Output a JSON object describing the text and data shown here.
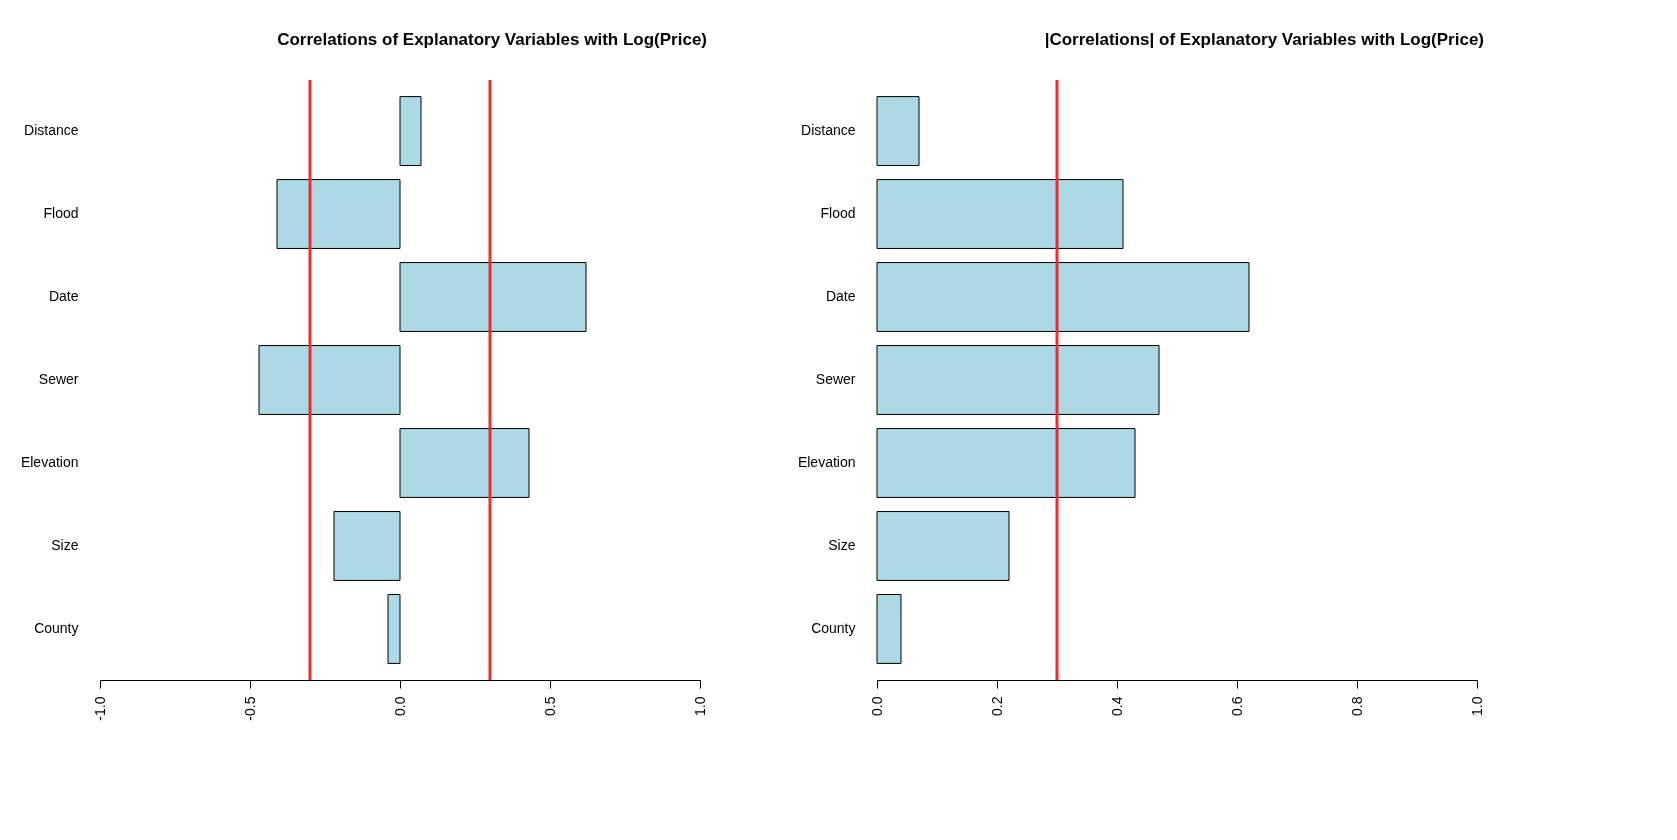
{
  "chart_data": [
    {
      "type": "bar",
      "orientation": "horizontal",
      "title": "Correlations of Explanatory Variables with Log(Price)",
      "categories": [
        "Distance",
        "Flood",
        "Date",
        "Sewer",
        "Elevation",
        "Size",
        "County"
      ],
      "values": [
        0.07,
        -0.41,
        0.62,
        -0.47,
        0.43,
        -0.22,
        -0.04
      ],
      "color": "#add8e6",
      "xlim": [
        -1,
        1
      ],
      "xticks": [
        {
          "value": -1,
          "label": "-1.0"
        },
        {
          "value": -0.5,
          "label": "-0.5"
        },
        {
          "value": 0,
          "label": "0.0"
        },
        {
          "value": 0.5,
          "label": "0.5"
        },
        {
          "value": 1,
          "label": "1.0"
        }
      ],
      "grid": false,
      "ref_lines": [
        {
          "axis": "x",
          "value": -0.3,
          "color": "#ee2c2c"
        },
        {
          "axis": "x",
          "value": 0.3,
          "color": "#ee2c2c"
        }
      ]
    },
    {
      "type": "bar",
      "orientation": "horizontal",
      "title": "|Correlations| of Explanatory Variables with Log(Price)",
      "categories": [
        "Distance",
        "Flood",
        "Date",
        "Sewer",
        "Elevation",
        "Size",
        "County"
      ],
      "values": [
        0.07,
        0.41,
        0.62,
        0.47,
        0.43,
        0.22,
        0.04
      ],
      "color": "#add8e6",
      "xlim": [
        0,
        1
      ],
      "xticks": [
        {
          "value": 0,
          "label": "0.0"
        },
        {
          "value": 0.2,
          "label": "0.2"
        },
        {
          "value": 0.4,
          "label": "0.4"
        },
        {
          "value": 0.6,
          "label": "0.6"
        },
        {
          "value": 0.8,
          "label": "0.8"
        },
        {
          "value": 1,
          "label": "1.0"
        }
      ],
      "grid": false,
      "ref_lines": [
        {
          "axis": "x",
          "value": 0.3,
          "color": "#ee2c2c"
        }
      ]
    }
  ]
}
